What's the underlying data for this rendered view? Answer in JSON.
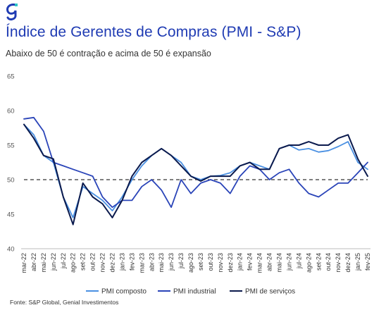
{
  "header": {
    "logo_icon": "genial-g-logo-icon",
    "title": "Índice de Gerentes de Compras (PMI - S&P)",
    "subtitle": "Abaixo de 50 é contração e acima de 50 é expansão"
  },
  "footer": {
    "source": "Fonte: S&P Global, Genial Investimentos"
  },
  "colors": {
    "title": "#1f3bb3",
    "composto": "#4a90e2",
    "industrial": "#2a44b8",
    "servicos": "#0b1a4d",
    "reference_line": "#333333"
  },
  "chart_data": {
    "type": "line",
    "title": "",
    "xlabel": "",
    "ylabel": "",
    "ylim": [
      40,
      65
    ],
    "yticks": [
      40,
      45,
      50,
      55,
      60,
      65
    ],
    "grid": false,
    "legend_position": "bottom",
    "reference_line": 50,
    "categories": [
      "mar-22",
      "abr-22",
      "mai-22",
      "jun-22",
      "jul-22",
      "ago-22",
      "set-22",
      "out-22",
      "nov-22",
      "dez-22",
      "jan-23",
      "fev-23",
      "mar-23",
      "abr-23",
      "mai-23",
      "jun-23",
      "jul-23",
      "ago-23",
      "set-23",
      "out-23",
      "nov-23",
      "dez-23",
      "jan-24",
      "fev-24",
      "mar-24",
      "abr-24",
      "mai-24",
      "jun-24",
      "jul-24",
      "ago-24",
      "set-24",
      "out-24",
      "nov-24",
      "dez-24",
      "jan-25",
      "fev-25"
    ],
    "tick_labels": [
      "mar-22",
      "abr-22",
      "mai-22",
      "jun-22",
      "jul-22",
      "ago-22",
      "set-22",
      "out-22",
      "nov-22",
      "dez-22",
      "jan-23",
      "fev-23",
      "mar-23",
      "abr-23",
      "mai-23",
      "jun-23",
      "jul-23",
      "ago-23",
      "set-23",
      "out-23",
      "nov-23",
      "dez-23",
      "jan-24",
      "fev-24",
      "mar-24",
      "abr-24",
      "mai-24",
      "jun-24",
      "jul-24",
      "ago-24",
      "set-24",
      "out-24",
      "nov-24",
      "dez-24",
      "jan-25",
      "fev-25"
    ],
    "series": [
      {
        "name": "PMI composto",
        "values": [
          58.0,
          56.5,
          53.5,
          52.5,
          47.5,
          44.5,
          49.0,
          48.0,
          47.0,
          45.5,
          47.5,
          50.0,
          52.0,
          53.5,
          54.5,
          53.5,
          52.5,
          50.5,
          50.0,
          50.5,
          50.6,
          51.0,
          52.0,
          52.5,
          52.0,
          51.5,
          54.5,
          55.0,
          54.3,
          54.5,
          54.0,
          54.2,
          54.8,
          55.5,
          52.5,
          51.5
        ],
        "color": "#4a90e2"
      },
      {
        "name": "PMI industrial",
        "values": [
          58.8,
          59.0,
          57.0,
          52.5,
          52.0,
          51.5,
          51.0,
          50.5,
          47.5,
          46.0,
          47.0,
          47.0,
          49.0,
          50.0,
          48.5,
          46.0,
          50.0,
          48.0,
          49.5,
          50.0,
          49.5,
          48.0,
          50.5,
          52.0,
          51.5,
          50.0,
          51.0,
          51.5,
          49.5,
          48.0,
          47.5,
          48.5,
          49.5,
          49.5,
          51.0,
          52.5
        ],
        "color": "#2a44b8"
      },
      {
        "name": "PMI de serviços",
        "values": [
          58.0,
          56.0,
          53.5,
          53.0,
          47.5,
          43.5,
          49.5,
          47.5,
          46.5,
          44.5,
          47.0,
          50.5,
          52.5,
          53.5,
          54.5,
          53.5,
          52.0,
          50.5,
          49.8,
          50.5,
          50.5,
          50.5,
          52.0,
          52.5,
          51.5,
          51.5,
          54.5,
          55.0,
          55.0,
          55.5,
          55.0,
          55.0,
          56.0,
          56.5,
          53.0,
          50.5
        ],
        "color": "#0b1a4d"
      }
    ]
  }
}
